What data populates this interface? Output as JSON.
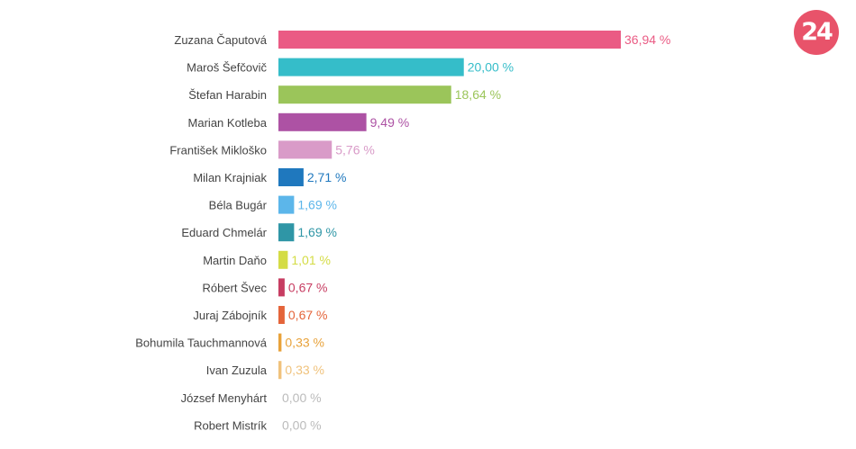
{
  "logo": {
    "text": "24",
    "color": "#e8536a"
  },
  "chart_data": {
    "type": "bar",
    "orientation": "horizontal",
    "categories": [
      "Zuzana Čaputová",
      "Maroš Šefčovič",
      "Štefan Harabin",
      "Marian Kotleba",
      "František Mikloško",
      "Milan Krajniak",
      "Béla Bugár",
      "Eduard Chmelár",
      "Martin Daňo",
      "Róbert Švec",
      "Juraj Zábojník",
      "Bohumila Tauchmannová",
      "Ivan Zuzula",
      "József Menyhárt",
      "Robert Mistrík"
    ],
    "values": [
      36.94,
      20.0,
      18.64,
      9.49,
      5.76,
      2.71,
      1.69,
      1.69,
      1.01,
      0.67,
      0.67,
      0.33,
      0.33,
      0.0,
      0.0
    ],
    "value_labels": [
      "36,94 %",
      "20,00 %",
      "18,64 %",
      "9,49 %",
      "5,76 %",
      "2,71 %",
      "1,69 %",
      "1,69 %",
      "1,01 %",
      "0,67 %",
      "0,67 %",
      "0,33 %",
      "0,33 %",
      "0,00 %",
      "0,00 %"
    ],
    "colors": [
      "#ea5b84",
      "#35bdc9",
      "#9bc55a",
      "#ad52a4",
      "#d99bc8",
      "#1f78be",
      "#5cb6ea",
      "#2f96a6",
      "#d4dc45",
      "#c73d62",
      "#e4643a",
      "#e8a23a",
      "#f0c27c",
      "#bbbbbb",
      "#bbbbbb"
    ],
    "title": "",
    "xlabel": "",
    "ylabel": "",
    "xlim": [
      0,
      36.94
    ],
    "grid": false,
    "legend": "none"
  }
}
